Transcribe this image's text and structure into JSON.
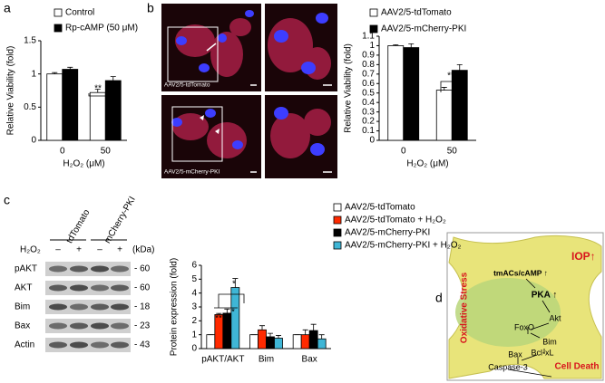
{
  "panel_labels": [
    "a",
    "b",
    "c",
    "d"
  ],
  "chart_data": [
    {
      "type": "bar",
      "ylabel": "Relative Viability (fold)",
      "xlabel": "H₂O₂ (μM)",
      "categories": [
        "0",
        "50"
      ],
      "series": [
        {
          "name": "Control",
          "color": "#ffffff",
          "values": [
            1.0,
            0.72
          ],
          "errors": [
            0.02,
            0.05
          ]
        },
        {
          "name": "Rp-cAMP (50 μM)",
          "color": "#000000",
          "values": [
            1.07,
            0.9
          ],
          "errors": [
            0.03,
            0.06
          ]
        }
      ],
      "ylim": [
        0,
        1.5
      ],
      "yticks": [
        0,
        0.5,
        1,
        1.5
      ],
      "annotations": [
        "**"
      ]
    },
    {
      "type": "bar",
      "ylabel": "Relative Viability (fold)",
      "xlabel": "H₂O₂ (μM)",
      "categories": [
        "0",
        "50"
      ],
      "series": [
        {
          "name": "AAV2/5-tdTomato",
          "color": "#ffffff",
          "values": [
            1.0,
            0.53
          ],
          "errors": [
            0.01,
            0.03
          ]
        },
        {
          "name": "AAV2/5-mCherry-PKI",
          "color": "#000000",
          "values": [
            0.98,
            0.74
          ],
          "errors": [
            0.04,
            0.06
          ]
        }
      ],
      "ylim": [
        0,
        1.1
      ],
      "yticks": [
        0,
        0.1,
        0.2,
        0.3,
        0.4,
        0.5,
        0.6,
        0.7,
        0.8,
        0.9,
        1,
        1.1
      ],
      "annotations": [
        "**"
      ]
    },
    {
      "type": "bar",
      "ylabel": "Protein expression (fold)",
      "categories": [
        "pAKT/AKT",
        "Bim",
        "Bax"
      ],
      "series": [
        {
          "name": "AAV2/5-tdTomato",
          "color": "#ffffff",
          "values": [
            1.0,
            1.0,
            1.0
          ],
          "errors": [
            0,
            0,
            0
          ]
        },
        {
          "name": "AAV2/5-tdTomato + H₂O₂",
          "color": "#ff2a00",
          "values": [
            2.45,
            1.35,
            1.0
          ],
          "errors": [
            0.08,
            0.3,
            0.35
          ]
        },
        {
          "name": "AAV2/5-mCherry-PKI",
          "color": "#000000",
          "values": [
            2.55,
            0.85,
            1.3
          ],
          "errors": [
            0.3,
            0.25,
            0.45
          ]
        },
        {
          "name": "AAV2/5-mCherry-PKI + H₂O₂",
          "color": "#3fb6d6",
          "values": [
            4.4,
            0.75,
            0.7
          ],
          "errors": [
            0.65,
            0.2,
            0.3
          ]
        }
      ],
      "ylim": [
        0,
        6
      ],
      "yticks": [
        0,
        1,
        2,
        3,
        4,
        5,
        6
      ],
      "annotations": [
        "*",
        "***",
        "*"
      ]
    }
  ],
  "micrographs": {
    "labels": [
      "AAV2/5-tdTomato",
      "AAV2/5-mCherry-PKI"
    ]
  },
  "blot": {
    "lane_groups": [
      "tdTomato",
      "mCherry-PKI"
    ],
    "treatment": "H₂O₂",
    "lane_signs": [
      "–",
      "+",
      "–",
      "+"
    ],
    "unit": "(kDa)",
    "rows": [
      {
        "label": "pAKT",
        "kda": "- 60"
      },
      {
        "label": "AKT",
        "kda": "- 60"
      },
      {
        "label": "Bim",
        "kda": "- 18"
      },
      {
        "label": "Bax",
        "kda": "- 23"
      },
      {
        "label": "Actin",
        "kda": "- 43"
      }
    ]
  },
  "diagram": {
    "iop": "IOP↑",
    "stress": "Oxidative Stress",
    "camp": "tmACs/cAMP ↑",
    "pka": "PKA ↑",
    "akt": "Akt",
    "foxo": "FoxO",
    "bim": "Bim",
    "bclxl": "Bcl-xL",
    "bax": "Bax",
    "caspase": "Caspase-3",
    "death": "Cell Death"
  }
}
